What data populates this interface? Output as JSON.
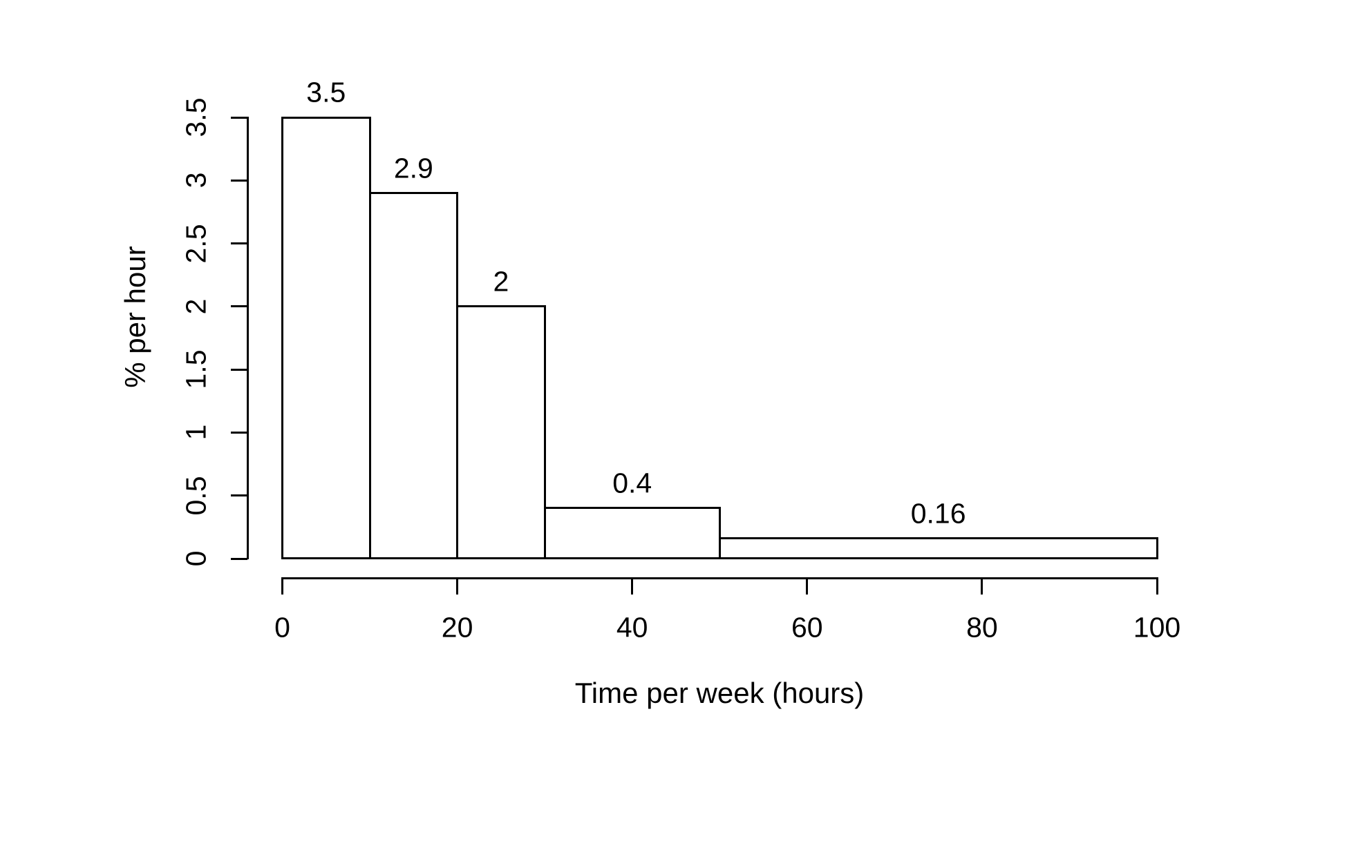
{
  "chart_data": {
    "type": "bar",
    "subtype": "histogram-density",
    "title": "",
    "xlabel": "Time per week (hours)",
    "ylabel": "% per hour",
    "xlim": [
      0,
      100
    ],
    "ylim": [
      0,
      3.5
    ],
    "grid": false,
    "legend": false,
    "bar_fill": "#ffffff",
    "bar_stroke": "#000000",
    "text_color": "#000000",
    "background": "#ffffff",
    "bins": [
      {
        "start": 0,
        "end": 10,
        "density": 3.5,
        "label": "3.5"
      },
      {
        "start": 10,
        "end": 20,
        "density": 2.9,
        "label": "2.9"
      },
      {
        "start": 20,
        "end": 30,
        "density": 2,
        "label": "2"
      },
      {
        "start": 30,
        "end": 50,
        "density": 0.4,
        "label": "0.4"
      },
      {
        "start": 50,
        "end": 100,
        "density": 0.16,
        "label": "0.16"
      }
    ],
    "x_axis": {
      "ticks": [
        {
          "value": 0,
          "label": "0"
        },
        {
          "value": 20,
          "label": "20"
        },
        {
          "value": 40,
          "label": "40"
        },
        {
          "value": 60,
          "label": "60"
        },
        {
          "value": 80,
          "label": "80"
        },
        {
          "value": 100,
          "label": "100"
        }
      ]
    },
    "y_axis": {
      "ticks": [
        {
          "value": 0,
          "label": "0"
        },
        {
          "value": 0.5,
          "label": "0.5"
        },
        {
          "value": 1,
          "label": "1"
        },
        {
          "value": 1.5,
          "label": "1.5"
        },
        {
          "value": 2,
          "label": "2"
        },
        {
          "value": 2.5,
          "label": "2.5"
        },
        {
          "value": 3,
          "label": "3"
        },
        {
          "value": 3.5,
          "label": "3.5"
        }
      ]
    }
  }
}
